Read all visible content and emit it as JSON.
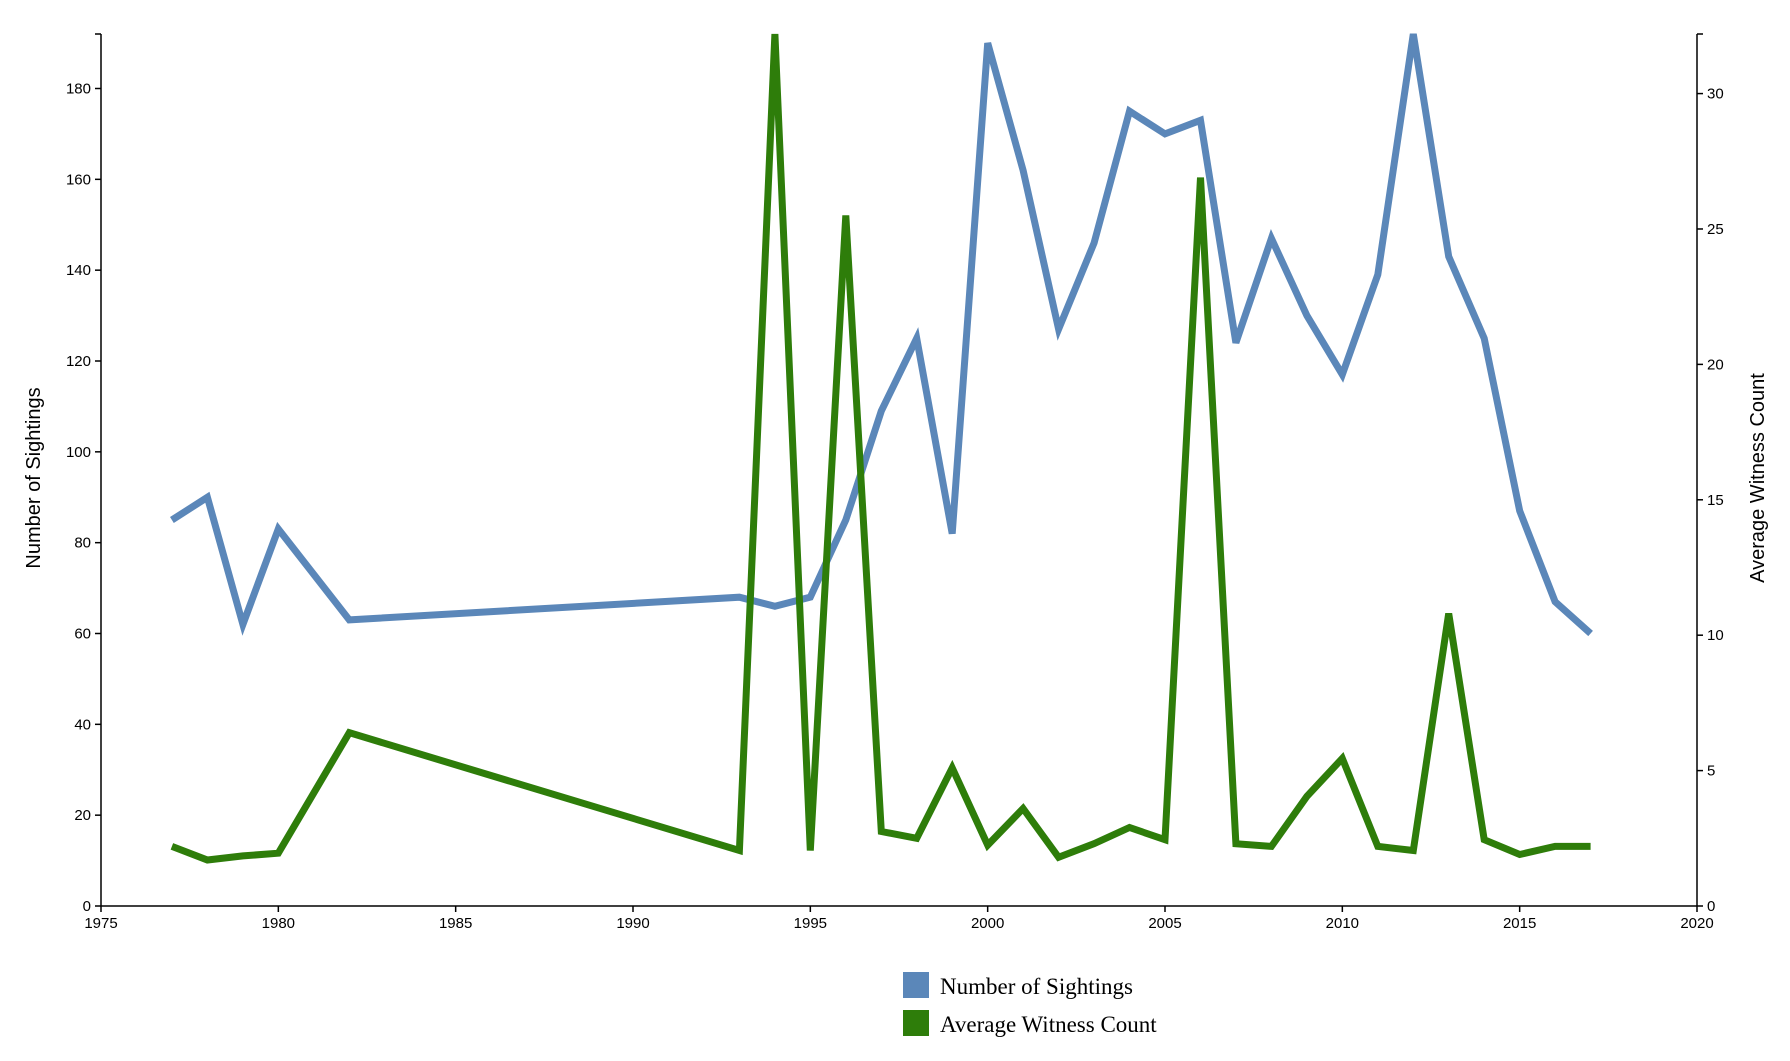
{
  "chart_data": {
    "type": "line",
    "title": "",
    "xlabel": "",
    "ylabel": "Number of Sightings",
    "y2label": "Average Witness Count",
    "xlim": [
      1975,
      2020
    ],
    "ylim": [
      0,
      192
    ],
    "y2lim": [
      0,
      32.2
    ],
    "x_ticks": [
      "1975",
      "1980",
      "1985",
      "1990",
      "1995",
      "2000",
      "2005",
      "2010",
      "2015",
      "2020"
    ],
    "y_ticks": [
      "0",
      "20",
      "40",
      "60",
      "80",
      "100",
      "120",
      "140",
      "160",
      "180"
    ],
    "y2_ticks": [
      "0",
      "5",
      "10",
      "15",
      "20",
      "25",
      "30"
    ],
    "grid": false,
    "legend_position": "bottom-center",
    "series": [
      {
        "name": "Number of Sightings",
        "axis": "left",
        "color": "#5b87b9",
        "points": [
          {
            "x": 1977,
            "y": 85
          },
          {
            "x": 1978,
            "y": 90
          },
          {
            "x": 1979,
            "y": 62
          },
          {
            "x": 1980,
            "y": 83
          },
          {
            "x": 1982,
            "y": 63
          },
          {
            "x": 1993,
            "y": 68
          },
          {
            "x": 1994,
            "y": 66
          },
          {
            "x": 1995,
            "y": 68
          },
          {
            "x": 1996,
            "y": 85
          },
          {
            "x": 1997,
            "y": 109
          },
          {
            "x": 1998,
            "y": 125
          },
          {
            "x": 1999,
            "y": 82
          },
          {
            "x": 2000,
            "y": 190
          },
          {
            "x": 2001,
            "y": 162
          },
          {
            "x": 2002,
            "y": 127
          },
          {
            "x": 2003,
            "y": 146
          },
          {
            "x": 2004,
            "y": 175
          },
          {
            "x": 2005,
            "y": 170
          },
          {
            "x": 2006,
            "y": 173
          },
          {
            "x": 2007,
            "y": 124
          },
          {
            "x": 2008,
            "y": 147
          },
          {
            "x": 2009,
            "y": 130
          },
          {
            "x": 2010,
            "y": 117
          },
          {
            "x": 2011,
            "y": 139
          },
          {
            "x": 2012,
            "y": 192
          },
          {
            "x": 2013,
            "y": 143
          },
          {
            "x": 2014,
            "y": 125
          },
          {
            "x": 2015,
            "y": 87
          },
          {
            "x": 2016,
            "y": 67
          },
          {
            "x": 2017,
            "y": 60
          }
        ]
      },
      {
        "name": "Average Witness Count",
        "axis": "right",
        "color": "#2e7d0a",
        "points": [
          {
            "x": 1977,
            "y": 2.2
          },
          {
            "x": 1978,
            "y": 1.7
          },
          {
            "x": 1979,
            "y": 1.85
          },
          {
            "x": 1980,
            "y": 1.95
          },
          {
            "x": 1982,
            "y": 6.4
          },
          {
            "x": 1993,
            "y": 2.05
          },
          {
            "x": 1994,
            "y": 32.2
          },
          {
            "x": 1995,
            "y": 2.05
          },
          {
            "x": 1996,
            "y": 25.5
          },
          {
            "x": 1997,
            "y": 2.75
          },
          {
            "x": 1998,
            "y": 2.5
          },
          {
            "x": 1999,
            "y": 5.1
          },
          {
            "x": 2000,
            "y": 2.25
          },
          {
            "x": 2001,
            "y": 3.6
          },
          {
            "x": 2002,
            "y": 1.8
          },
          {
            "x": 2003,
            "y": 2.3
          },
          {
            "x": 2004,
            "y": 2.9
          },
          {
            "x": 2005,
            "y": 2.45
          },
          {
            "x": 2006,
            "y": 26.9
          },
          {
            "x": 2007,
            "y": 2.3
          },
          {
            "x": 2008,
            "y": 2.2
          },
          {
            "x": 2009,
            "y": 4.05
          },
          {
            "x": 2010,
            "y": 5.45
          },
          {
            "x": 2011,
            "y": 2.2
          },
          {
            "x": 2012,
            "y": 2.05
          },
          {
            "x": 2013,
            "y": 10.8
          },
          {
            "x": 2014,
            "y": 2.45
          },
          {
            "x": 2015,
            "y": 1.9
          },
          {
            "x": 2016,
            "y": 2.2
          },
          {
            "x": 2017,
            "y": 2.2
          }
        ]
      }
    ]
  }
}
